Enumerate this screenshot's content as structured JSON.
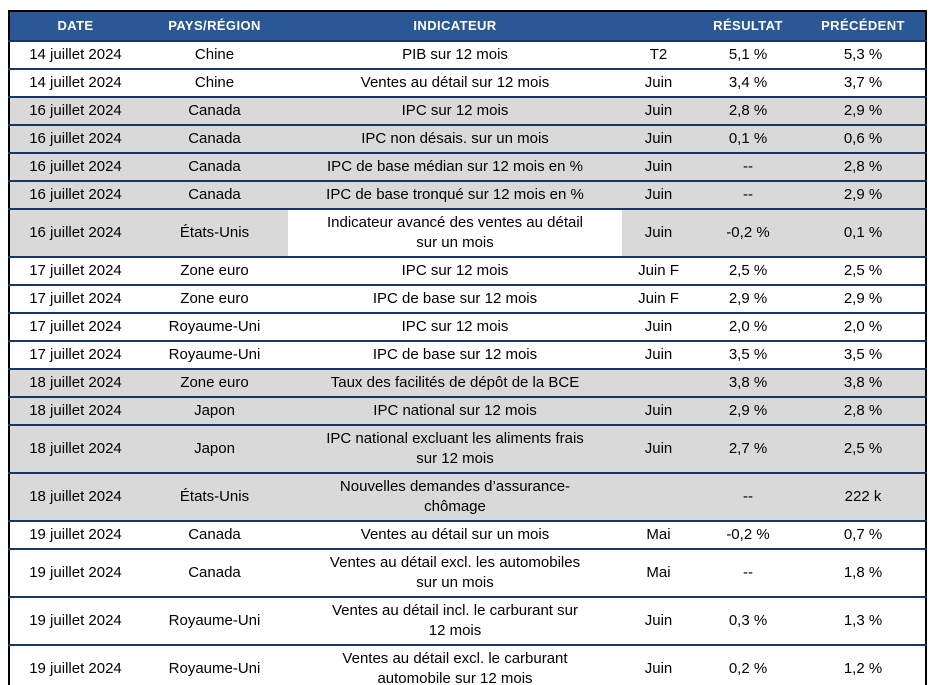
{
  "colors": {
    "header_bg": "#2A5796",
    "header_text": "#FFFFFF",
    "row_grey": "#D9D9D9",
    "row_white": "#FFFFFF",
    "grid_line": "#17375E",
    "outer_border": "#000000"
  },
  "table": {
    "headers": [
      "DATE",
      "PAYS/RÉGION",
      "INDICATEUR",
      "",
      "RÉSULTAT",
      "PRÉCÉDENT"
    ],
    "rows": [
      {
        "date": "14 juillet 2024",
        "region": "Chine",
        "indicator": "PIB sur 12 mois",
        "period": "T2",
        "result": "5,1 %",
        "previous": "5,3 %",
        "shading": "white"
      },
      {
        "date": "14 juillet 2024",
        "region": "Chine",
        "indicator": "Ventes au détail sur 12 mois",
        "period": "Juin",
        "result": "3,4 %",
        "previous": "3,7 %",
        "shading": "white"
      },
      {
        "date": "16 juillet 2024",
        "region": "Canada",
        "indicator": "IPC sur 12 mois",
        "period": "Juin",
        "result": "2,8 %",
        "previous": "2,9 %",
        "shading": "grey"
      },
      {
        "date": "16 juillet 2024",
        "region": "Canada",
        "indicator": "IPC non désais. sur un mois",
        "period": "Juin",
        "result": "0,1 %",
        "previous": "0,6 %",
        "shading": "grey"
      },
      {
        "date": "16 juillet 2024",
        "region": "Canada",
        "indicator": "IPC de base médian sur 12 mois en %",
        "period": "Juin",
        "result": "--",
        "previous": "2,8 %",
        "shading": "grey"
      },
      {
        "date": "16 juillet 2024",
        "region": "Canada",
        "indicator": "IPC de base tronqué sur 12 mois en %",
        "period": "Juin",
        "result": "--",
        "previous": "2,9 %",
        "shading": "grey"
      },
      {
        "date": "16 juillet 2024",
        "region": "États-Unis",
        "indicator": "Indicateur avancé des ventes au détail\nsur un mois",
        "period": "Juin",
        "result": "-0,2 %",
        "previous": "0,1 %",
        "shading": "grey",
        "indicator_shading": "white"
      },
      {
        "date": "17 juillet 2024",
        "region": "Zone euro",
        "indicator": "IPC sur 12 mois",
        "period": "Juin F",
        "result": "2,5 %",
        "previous": "2,5 %",
        "shading": "white"
      },
      {
        "date": "17 juillet 2024",
        "region": "Zone euro",
        "indicator": "IPC de base sur 12 mois",
        "period": "Juin F",
        "result": "2,9 %",
        "previous": "2,9 %",
        "shading": "white"
      },
      {
        "date": "17 juillet 2024",
        "region": "Royaume-Uni",
        "indicator": "IPC sur 12 mois",
        "period": "Juin",
        "result": "2,0 %",
        "previous": "2,0 %",
        "shading": "white"
      },
      {
        "date": "17 juillet 2024",
        "region": "Royaume-Uni",
        "indicator": "IPC de base sur 12 mois",
        "period": "Juin",
        "result": "3,5 %",
        "previous": "3,5 %",
        "shading": "white"
      },
      {
        "date": "18 juillet 2024",
        "region": "Zone euro",
        "indicator": "Taux des facilités de dépôt de la BCE",
        "period": "",
        "result": "3,8 %",
        "previous": "3,8 %",
        "shading": "grey"
      },
      {
        "date": "18 juillet 2024",
        "region": "Japon",
        "indicator": "IPC national sur 12 mois",
        "period": "Juin",
        "result": "2,9 %",
        "previous": "2,8 %",
        "shading": "grey"
      },
      {
        "date": "18 juillet 2024",
        "region": "Japon",
        "indicator": "IPC national excluant les aliments frais\nsur 12 mois",
        "period": "Juin",
        "result": "2,7 %",
        "previous": "2,5 %",
        "shading": "grey"
      },
      {
        "date": "18 juillet 2024",
        "region": "États-Unis",
        "indicator": "Nouvelles demandes d’assurance-\nchômage",
        "period": "",
        "result": "--",
        "previous": "222 k",
        "shading": "grey"
      },
      {
        "date": "19 juillet 2024",
        "region": "Canada",
        "indicator": "Ventes au détail sur un mois",
        "period": "Mai",
        "result": "-0,2 %",
        "previous": "0,7 %",
        "shading": "white"
      },
      {
        "date": "19 juillet 2024",
        "region": "Canada",
        "indicator": "Ventes au détail excl. les automobiles\nsur un mois",
        "period": "Mai",
        "result": "--",
        "previous": "1,8 %",
        "shading": "white"
      },
      {
        "date": "19 juillet 2024",
        "region": "Royaume-Uni",
        "indicator": "Ventes au détail incl. le carburant sur\n12 mois",
        "period": "Juin",
        "result": "0,3 %",
        "previous": "1,3 %",
        "shading": "white"
      },
      {
        "date": "19 juillet 2024",
        "region": "Royaume-Uni",
        "indicator": "Ventes au détail excl. le carburant\nautomobile sur 12 mois",
        "period": "Juin",
        "result": "0,2 %",
        "previous": "1,2 %",
        "shading": "white"
      }
    ]
  }
}
